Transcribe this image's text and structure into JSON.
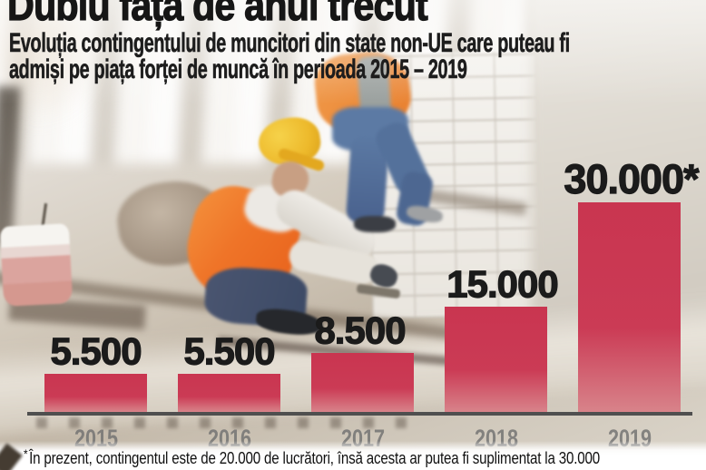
{
  "header": {
    "title": "Dublu față de anul trecut",
    "subtitle_line1": "Evoluția contingentului de muncitori din state non-UE care puteau fi",
    "subtitle_line2": "admiși pe piața forței de muncă în perioada 2015 – 2019"
  },
  "chart_data": {
    "type": "bar",
    "title": "Evoluția contingentului de muncitori din state non-UE care puteau fi admiși pe piața forței de muncă în perioada 2015 – 2019",
    "categories": [
      "2015",
      "2016",
      "2017",
      "2018",
      "2019"
    ],
    "values": [
      5500,
      5500,
      8500,
      15000,
      30000
    ],
    "value_labels": [
      "5.500",
      "5.500",
      "8.500",
      "15.000",
      "30.000*"
    ],
    "xlabel": "",
    "ylabel": "",
    "ylim": [
      0,
      30000
    ],
    "grid": false,
    "legend": "none",
    "bar_color_top": "#c93550",
    "bar_color_bottom": "#d8838a",
    "axis_line_color": "#4f4f4f",
    "tick_label_color": "#707070",
    "value_label_color": "#1b1b1b"
  },
  "footnote": {
    "marker": "*",
    "text": "În prezent, contingentul este de 20.000 de lucrători, însă acesta ar putea fi suplimentat la 30.000"
  }
}
